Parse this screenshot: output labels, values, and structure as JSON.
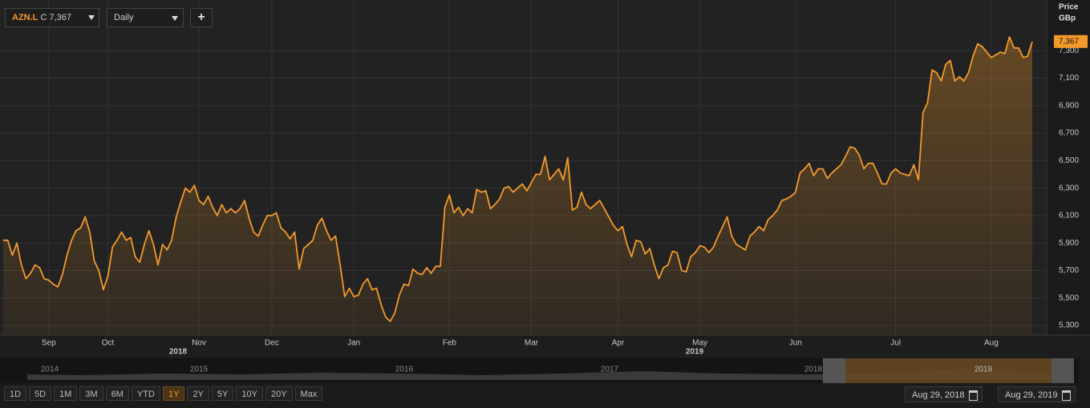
{
  "toolbar": {
    "ticker": "AZN.L",
    "close_label": "C 7,367",
    "interval": "Daily",
    "add": "+"
  },
  "axis_title": {
    "line1": "Price",
    "line2": "GBp"
  },
  "year_labels": [
    "2018",
    "2019"
  ],
  "navigator_years": [
    "2014",
    "2015",
    "2016",
    "2017",
    "2018",
    "2019"
  ],
  "range_buttons": [
    "1D",
    "5D",
    "1M",
    "3M",
    "6M",
    "YTD",
    "1Y",
    "2Y",
    "5Y",
    "10Y",
    "20Y",
    "Max"
  ],
  "active_range": "1Y",
  "dates": {
    "from": "Aug 29, 2018",
    "to": "Aug 29, 2019"
  },
  "chart_data": {
    "type": "line",
    "color": "#f39a2a",
    "grid": true,
    "ylim": [
      5230,
      7640
    ],
    "yticks": [
      {
        "value": 5300,
        "label": "5,300"
      },
      {
        "value": 5500,
        "label": "5,500"
      },
      {
        "value": 5700,
        "label": "5,700"
      },
      {
        "value": 5900,
        "label": "5,900"
      },
      {
        "value": 6100,
        "label": "6,100"
      },
      {
        "value": 6300,
        "label": "6,300"
      },
      {
        "value": 6500,
        "label": "6,500"
      },
      {
        "value": 6700,
        "label": "6,700"
      },
      {
        "value": 6900,
        "label": "6,900"
      },
      {
        "value": 7100,
        "label": "7,100"
      },
      {
        "value": 7300,
        "label": "7,300"
      }
    ],
    "last_price": {
      "value": 7367,
      "label": "7,367"
    },
    "categories": [
      null,
      null,
      null,
      null,
      null,
      null,
      null,
      null,
      null,
      null,
      "Sep",
      null,
      null,
      null,
      null,
      null,
      null,
      null,
      null,
      null,
      null,
      null,
      null,
      "Oct",
      null,
      null,
      null,
      null,
      null,
      null,
      null,
      null,
      null,
      null,
      null,
      null,
      null,
      null,
      null,
      null,
      null,
      null,
      null,
      "Nov",
      null,
      null,
      null,
      null,
      null,
      null,
      null,
      null,
      null,
      null,
      null,
      null,
      null,
      null,
      null,
      "Dec",
      null,
      null,
      null,
      null,
      null,
      null,
      null,
      null,
      null,
      null,
      null,
      null,
      null,
      null,
      null,
      null,
      null,
      "Jan",
      null,
      null,
      null,
      null,
      null,
      null,
      null,
      null,
      null,
      null,
      null,
      null,
      null,
      null,
      null,
      null,
      null,
      null,
      null,
      null,
      "Feb",
      null,
      null,
      null,
      null,
      null,
      null,
      null,
      null,
      null,
      null,
      null,
      null,
      null,
      null,
      null,
      null,
      null,
      "Mar",
      null,
      null,
      null,
      null,
      null,
      null,
      null,
      null,
      null,
      null,
      null,
      null,
      null,
      null,
      null,
      null,
      null,
      null,
      "Apr",
      null,
      null,
      null,
      null,
      null,
      null,
      null,
      null,
      null,
      null,
      null,
      null,
      null,
      null,
      null,
      null,
      null,
      "May",
      null,
      null,
      null,
      null,
      null,
      null,
      null,
      null,
      null,
      null,
      null,
      null,
      null,
      null,
      null,
      null,
      null,
      null,
      null,
      null,
      "Jun",
      null,
      null,
      null,
      null,
      null,
      null,
      null,
      null,
      null,
      null,
      null,
      null,
      null,
      null,
      null,
      null,
      null,
      null,
      null,
      null,
      null,
      "Jul",
      null,
      null,
      null,
      null,
      null,
      null,
      null,
      null,
      null,
      null,
      null,
      null,
      null,
      null,
      null,
      null,
      null,
      null,
      null,
      null,
      "Aug",
      null,
      null,
      null,
      null,
      null,
      null,
      null,
      null,
      null
    ],
    "values": [
      5920,
      5920,
      5810,
      5900,
      5740,
      5640,
      5680,
      5740,
      5720,
      5640,
      5630,
      5600,
      5580,
      5670,
      5810,
      5920,
      5990,
      6010,
      6090,
      5980,
      5770,
      5700,
      5560,
      5660,
      5870,
      5920,
      5980,
      5920,
      5940,
      5800,
      5760,
      5890,
      5990,
      5890,
      5740,
      5890,
      5850,
      5920,
      6090,
      6200,
      6300,
      6270,
      6320,
      6210,
      6180,
      6240,
      6160,
      6100,
      6180,
      6120,
      6150,
      6120,
      6150,
      6210,
      6080,
      5980,
      5950,
      6030,
      6100,
      6100,
      6120,
      6010,
      5980,
      5930,
      5980,
      5710,
      5860,
      5890,
      5920,
      6030,
      6080,
      5990,
      5920,
      5950,
      5740,
      5510,
      5570,
      5510,
      5520,
      5600,
      5640,
      5560,
      5570,
      5450,
      5360,
      5330,
      5390,
      5520,
      5600,
      5590,
      5710,
      5680,
      5670,
      5720,
      5680,
      5730,
      5730,
      6160,
      6250,
      6120,
      6160,
      6100,
      6150,
      6120,
      6290,
      6270,
      6280,
      6150,
      6180,
      6220,
      6300,
      6310,
      6270,
      6300,
      6330,
      6280,
      6340,
      6400,
      6400,
      6530,
      6360,
      6400,
      6440,
      6360,
      6520,
      6140,
      6160,
      6270,
      6180,
      6150,
      6180,
      6210,
      6150,
      6090,
      6030,
      5990,
      6020,
      5890,
      5800,
      5920,
      5910,
      5820,
      5860,
      5740,
      5640,
      5720,
      5740,
      5840,
      5830,
      5700,
      5690,
      5800,
      5830,
      5880,
      5870,
      5830,
      5870,
      5950,
      6020,
      6090,
      5950,
      5890,
      5870,
      5850,
      5950,
      5980,
      6020,
      5990,
      6070,
      6100,
      6140,
      6210,
      6220,
      6240,
      6270,
      6410,
      6440,
      6480,
      6390,
      6440,
      6440,
      6370,
      6410,
      6440,
      6470,
      6530,
      6600,
      6590,
      6540,
      6440,
      6480,
      6480,
      6410,
      6330,
      6330,
      6410,
      6440,
      6410,
      6400,
      6390,
      6470,
      6360,
      6850,
      6920,
      7160,
      7140,
      7080,
      7200,
      7230,
      7080,
      7110,
      7080,
      7140,
      7260,
      7350,
      7330,
      7290,
      7250,
      7270,
      7290,
      7280,
      7400,
      7320,
      7320,
      7250,
      7260,
      7367
    ]
  }
}
